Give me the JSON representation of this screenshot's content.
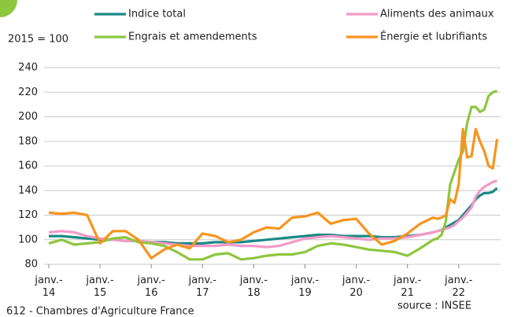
{
  "chart_data": {
    "type": "line",
    "ylabel": "2015 = 100",
    "source": "source : INSEE",
    "footer": "612 - Chambres d'Agriculture France",
    "x": [
      "2014-01",
      "2014-04",
      "2014-07",
      "2014-10",
      "2015-01",
      "2015-04",
      "2015-07",
      "2015-10",
      "2016-01",
      "2016-04",
      "2016-07",
      "2016-10",
      "2017-01",
      "2017-04",
      "2017-07",
      "2017-10",
      "2018-01",
      "2018-04",
      "2018-07",
      "2018-10",
      "2019-01",
      "2019-04",
      "2019-07",
      "2019-10",
      "2020-01",
      "2020-04",
      "2020-07",
      "2020-10",
      "2021-01",
      "2021-04",
      "2021-07",
      "2021-08",
      "2021-09",
      "2021-10",
      "2021-11",
      "2021-12",
      "2022-01",
      "2022-02",
      "2022-03",
      "2022-04",
      "2022-05",
      "2022-06",
      "2022-07",
      "2022-08",
      "2022-09",
      "2022-10"
    ],
    "series": [
      {
        "name": "Indice total",
        "color": "#1a8a84",
        "values": [
          103,
          103,
          102,
          101,
          100,
          100,
          99,
          99,
          98,
          98,
          97,
          97,
          97,
          98,
          98,
          98,
          99,
          100,
          101,
          102,
          103,
          104,
          104,
          103,
          103,
          103,
          102,
          102,
          103,
          104,
          106,
          107,
          108,
          110,
          112,
          114,
          116,
          120,
          124,
          128,
          133,
          136,
          138,
          138,
          139,
          142
        ]
      },
      {
        "name": "Aliments des animaux",
        "color": "#f49ac8",
        "values": [
          106,
          107,
          106,
          103,
          101,
          100,
          99,
          99,
          98,
          97,
          96,
          95,
          95,
          95,
          96,
          95,
          95,
          94,
          95,
          98,
          101,
          102,
          103,
          102,
          101,
          100,
          101,
          101,
          102,
          104,
          106,
          107,
          108,
          109,
          110,
          112,
          115,
          118,
          122,
          126,
          135,
          140,
          143,
          145,
          147,
          148
        ]
      },
      {
        "name": "Engrais et amendements",
        "color": "#8dc63f",
        "values": [
          97,
          100,
          96,
          97,
          98,
          101,
          102,
          98,
          97,
          95,
          90,
          84,
          84,
          88,
          89,
          84,
          85,
          87,
          88,
          88,
          90,
          95,
          97,
          96,
          94,
          92,
          91,
          90,
          87,
          93,
          100,
          101,
          104,
          115,
          145,
          155,
          165,
          172,
          195,
          208,
          208,
          204,
          206,
          217,
          220,
          221
        ]
      },
      {
        "name": "Énergie et lubrifiants",
        "color": "#f7941d",
        "values": [
          122,
          121,
          122,
          120,
          97,
          107,
          107,
          100,
          85,
          92,
          96,
          93,
          105,
          103,
          98,
          100,
          106,
          110,
          109,
          118,
          119,
          122,
          113,
          116,
          117,
          105,
          96,
          99,
          105,
          113,
          118,
          117,
          118,
          120,
          133,
          130,
          145,
          190,
          167,
          168,
          190,
          180,
          172,
          160,
          158,
          182
        ]
      }
    ],
    "ylim": [
      80,
      240
    ],
    "yticks": [
      80,
      100,
      120,
      140,
      160,
      180,
      200,
      220,
      240
    ],
    "xticks": [
      {
        "value": "2014-01",
        "label": "janv.- 14"
      },
      {
        "value": "2015-01",
        "label": "janv.- 15"
      },
      {
        "value": "2016-01",
        "label": "janv.- 16"
      },
      {
        "value": "2017-01",
        "label": "janv.- 17"
      },
      {
        "value": "2018-01",
        "label": "janv.- 18"
      },
      {
        "value": "2019-01",
        "label": "janv.- 19"
      },
      {
        "value": "2020-01",
        "label": "janv.- 20"
      },
      {
        "value": "2021-01",
        "label": "janv.- 21"
      },
      {
        "value": "2022-01",
        "label": "janv.- 22"
      }
    ],
    "grid": true
  }
}
